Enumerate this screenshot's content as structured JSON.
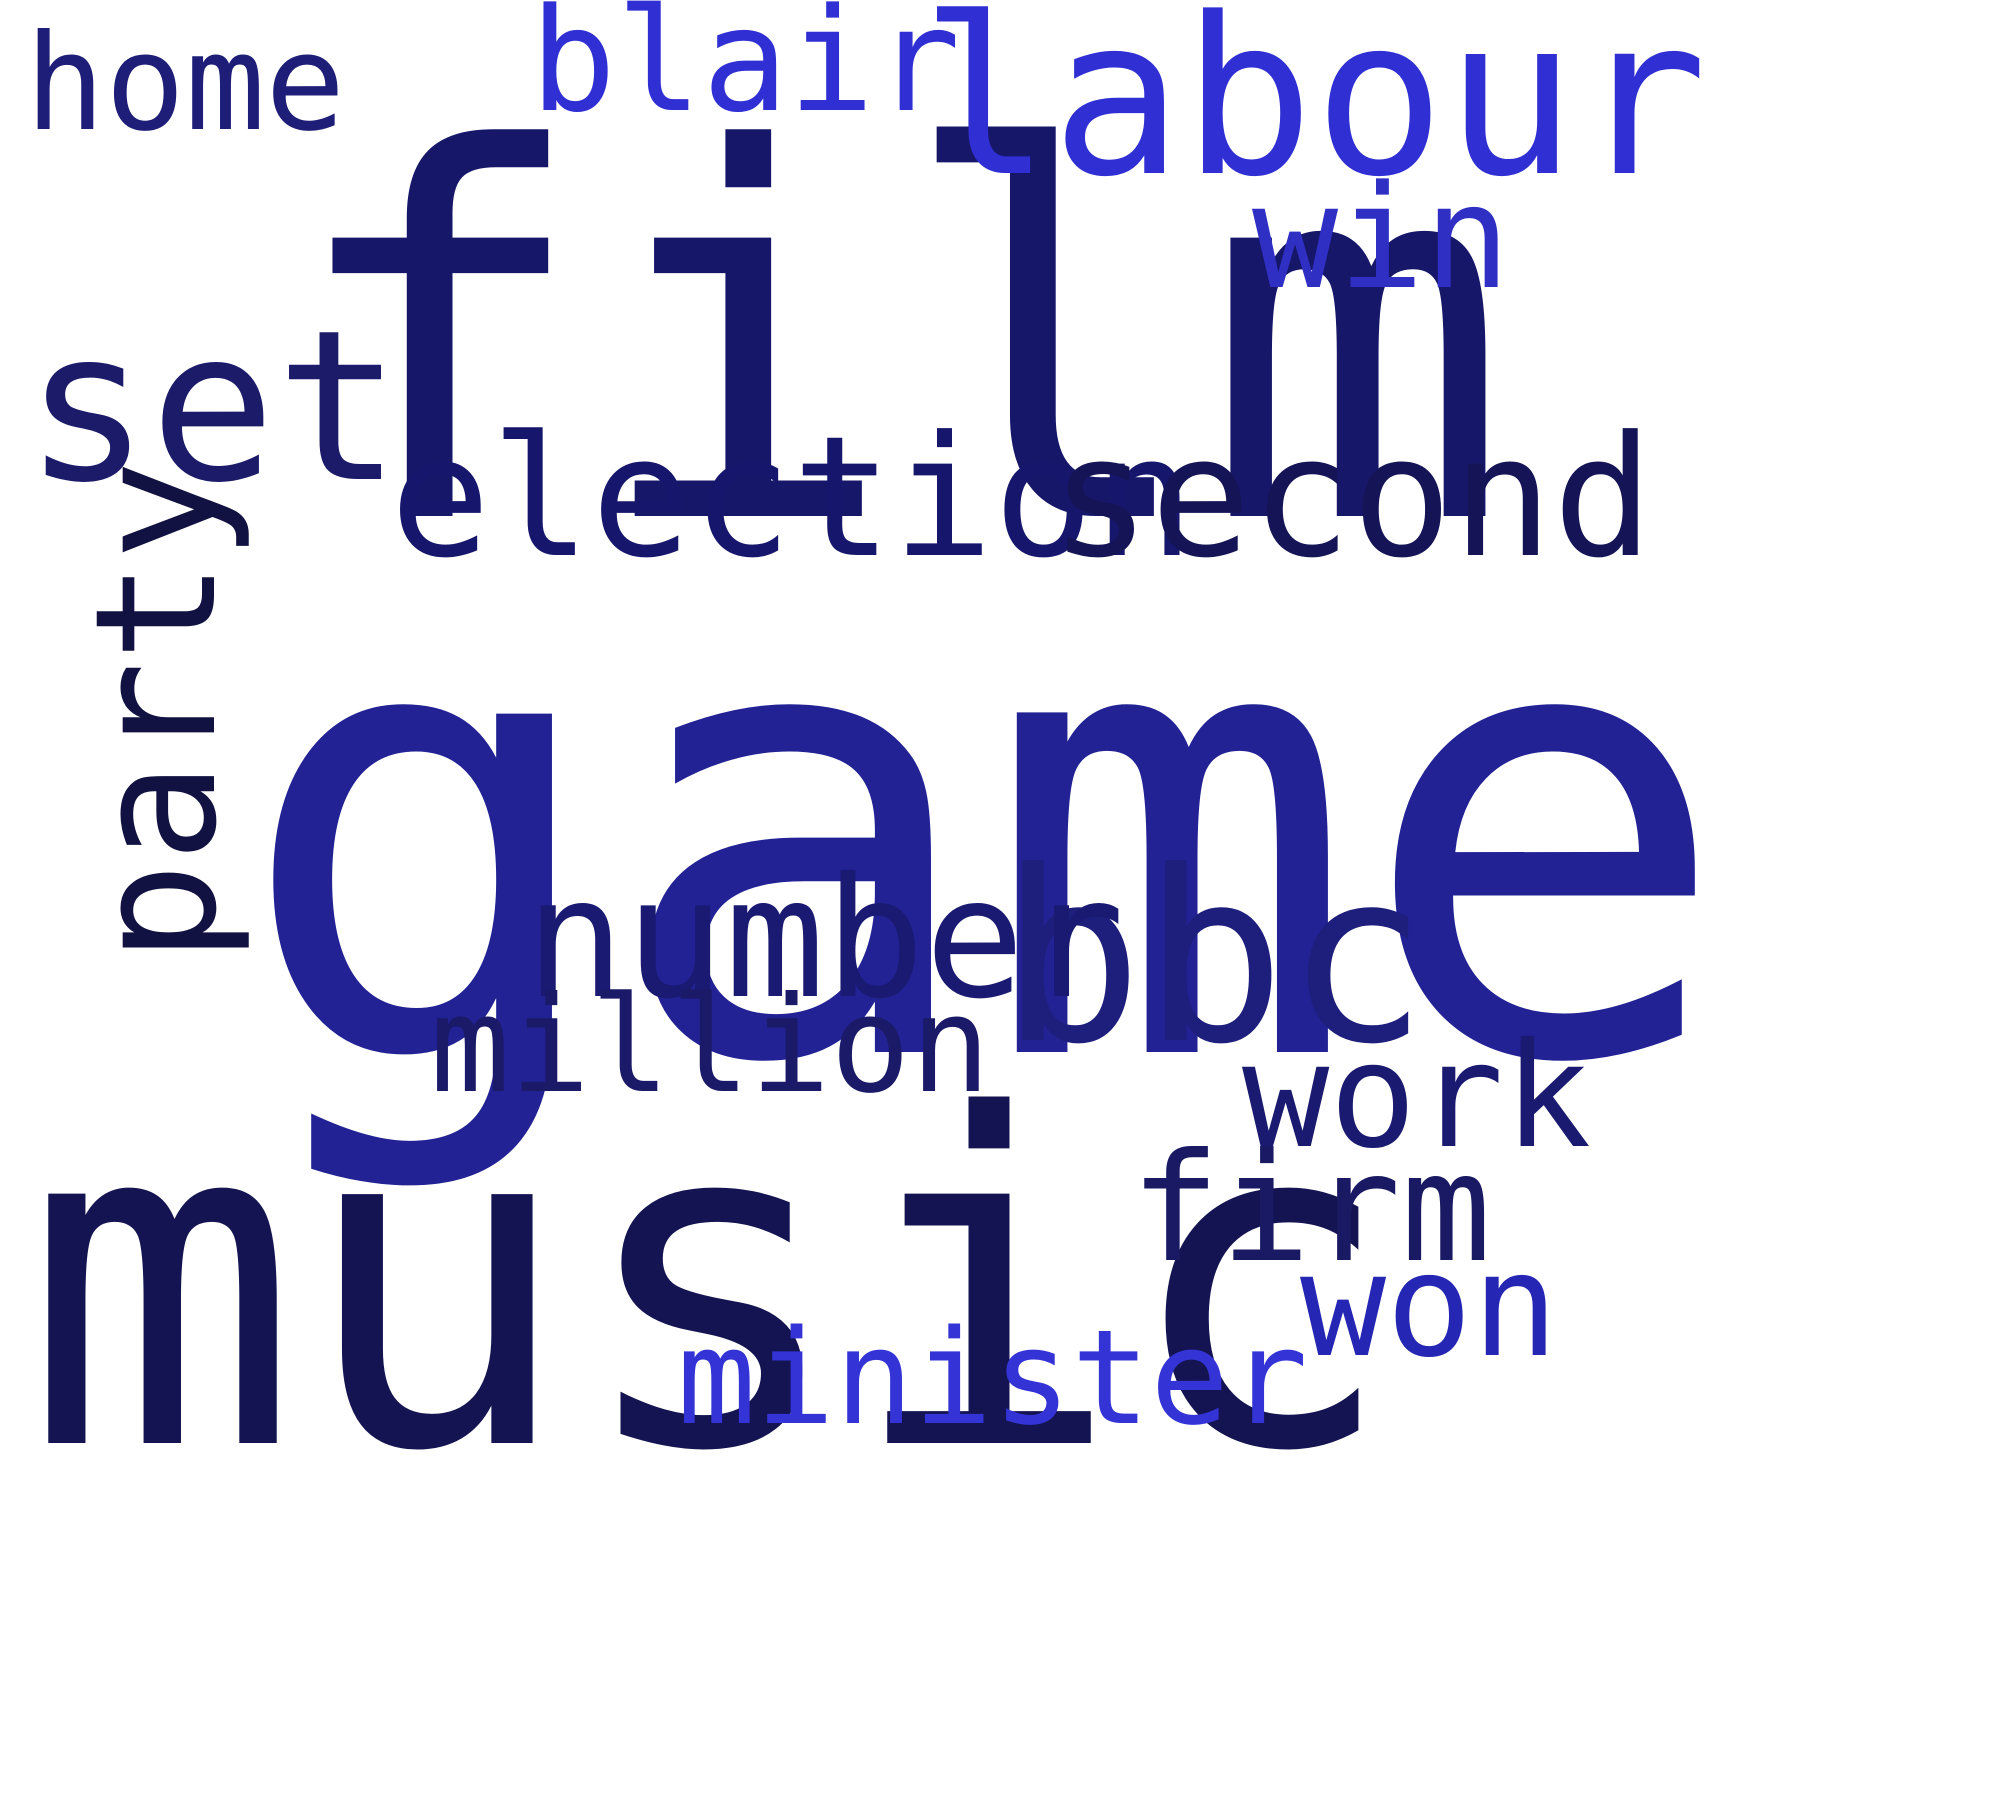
{
  "words": [
    {
      "text": "game",
      "color": "#222295"
    },
    {
      "text": "music",
      "color": "#141452"
    },
    {
      "text": "film",
      "color": "#17176a"
    },
    {
      "text": "labour",
      "color": "#2f2fd4"
    },
    {
      "text": "election",
      "color": "#16166c"
    },
    {
      "text": "second",
      "color": "#141456"
    },
    {
      "text": "bbc",
      "color": "#1e1e7d"
    },
    {
      "text": "number",
      "color": "#1a1a73"
    },
    {
      "text": "party",
      "color": "#121242"
    },
    {
      "text": "set",
      "color": "#1b1b6a"
    },
    {
      "text": "blair",
      "color": "#2f2fd4"
    },
    {
      "text": "home",
      "color": "#1e1e78"
    },
    {
      "text": "win",
      "color": "#2f2fc4"
    },
    {
      "text": "work",
      "color": "#1a1a70"
    },
    {
      "text": "firm",
      "color": "#1a1a64"
    },
    {
      "text": "won",
      "color": "#2626b4"
    },
    {
      "text": "million",
      "color": "#1a1a68"
    },
    {
      "text": "minister",
      "color": "#3434d6"
    }
  ]
}
